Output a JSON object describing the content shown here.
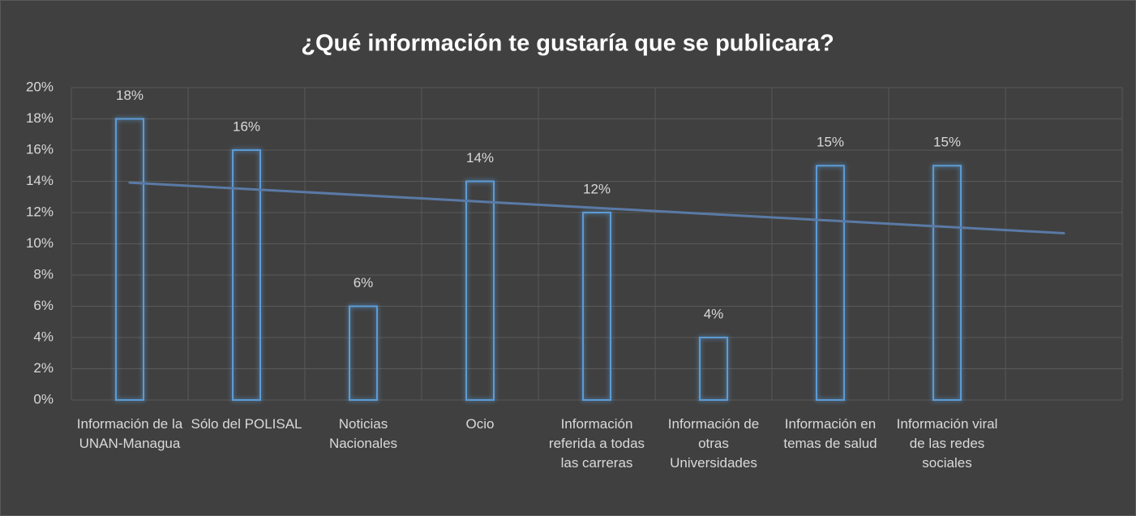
{
  "chart_data": {
    "type": "bar",
    "title": "¿Qué información te gustaría que se publicara?",
    "categories": [
      "Información de la UNAN-Managua",
      "Sólo del POLISAL",
      "Noticias Nacionales",
      "Ocio",
      "Información referida a todas las carreras",
      "Información de otras Universidades",
      "Información en temas de salud",
      "Información viral de las redes sociales",
      null
    ],
    "values": [
      18,
      16,
      6,
      14,
      12,
      4,
      15,
      15,
      null
    ],
    "value_labels": [
      "18%",
      "16%",
      "6%",
      "14%",
      "12%",
      "4%",
      "15%",
      "15%",
      null
    ],
    "color": "#5b9bd5",
    "trendline": "linear",
    "trendline_color": "#5a7aa6",
    "ylim": [
      0,
      20
    ],
    "yticks": [
      {
        "value": 0,
        "label": "0%"
      },
      {
        "value": 2,
        "label": "2%"
      },
      {
        "value": 4,
        "label": "4%"
      },
      {
        "value": 6,
        "label": "6%"
      },
      {
        "value": 8,
        "label": "8%"
      },
      {
        "value": 10,
        "label": "10%"
      },
      {
        "value": 12,
        "label": "12%"
      },
      {
        "value": 14,
        "label": "14%"
      },
      {
        "value": 16,
        "label": "16%"
      },
      {
        "value": 18,
        "label": "18%"
      },
      {
        "value": 20,
        "label": "20%"
      }
    ],
    "grid": true
  }
}
